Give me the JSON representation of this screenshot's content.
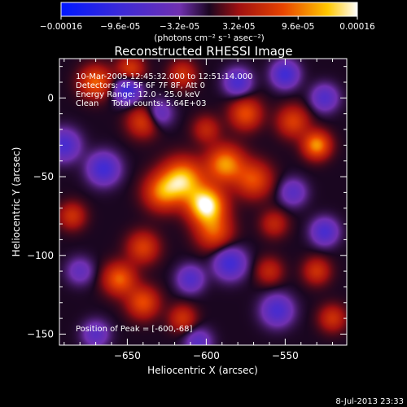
{
  "chart_data": {
    "type": "heatmap",
    "title": "Reconstructed RHESSI Image",
    "xlabel": "Heliocentric X (arcsec)",
    "ylabel": "Heliocentric Y (arcsec)",
    "xlim": [
      -693,
      -511
    ],
    "ylim": [
      -157,
      25
    ],
    "x_ticks": [
      -650,
      -600,
      -550
    ],
    "y_ticks": [
      -150,
      -100,
      -50,
      0
    ],
    "colorbar": {
      "tick_labels": [
        "-0.00016",
        "-9.6e-05",
        "-3.2e-05",
        "3.2e-05",
        "9.6e-05",
        "0.00016"
      ],
      "tick_values": [
        -0.00016,
        -9.6e-05,
        -3.2e-05,
        3.2e-05,
        9.6e-05,
        0.00016
      ],
      "range": [
        -0.00016,
        0.00016
      ],
      "unit_label": "(photons cm⁻² s⁻¹ asec⁻²)"
    },
    "annotations": [
      "10-Mar-2005 12:45:32.000 to 12:51:14.000",
      "Detectors: 4F 5F 6F 7F 8F, Att 0",
      "Energy Range: 12.0 - 25.0 keV",
      "Clean     Total counts: 5.64E+03"
    ],
    "peak_text": "Position of Peak = [-600,-68]",
    "peak": [
      -600,
      -68
    ],
    "sources": [
      {
        "x": -600,
        "y": -68,
        "amp": 0.00016,
        "sigma": 8
      },
      {
        "x": -615,
        "y": -52,
        "amp": 0.00013,
        "sigma": 9
      },
      {
        "x": -588,
        "y": -42,
        "amp": 0.00011,
        "sigma": 8
      },
      {
        "x": -628,
        "y": -60,
        "amp": 9e-05,
        "sigma": 8
      },
      {
        "x": -570,
        "y": -52,
        "amp": 8e-05,
        "sigma": 8
      },
      {
        "x": -595,
        "y": -85,
        "amp": 8e-05,
        "sigma": 8
      },
      {
        "x": -575,
        "y": -10,
        "amp": 8e-05,
        "sigma": 7
      },
      {
        "x": -545,
        "y": -15,
        "amp": 7e-05,
        "sigma": 7
      },
      {
        "x": -530,
        "y": -30,
        "amp": 0.00011,
        "sigma": 6
      },
      {
        "x": -640,
        "y": -15,
        "amp": 7e-05,
        "sigma": 7
      },
      {
        "x": -670,
        "y": 10,
        "amp": 9e-05,
        "sigma": 7
      },
      {
        "x": -648,
        "y": 18,
        "amp": 7e-05,
        "sigma": 6
      },
      {
        "x": -615,
        "y": 15,
        "amp": 6e-05,
        "sigma": 6
      },
      {
        "x": -640,
        "y": -95,
        "amp": 7e-05,
        "sigma": 7
      },
      {
        "x": -655,
        "y": -115,
        "amp": 9e-05,
        "sigma": 7
      },
      {
        "x": -640,
        "y": -130,
        "amp": 8e-05,
        "sigma": 7
      },
      {
        "x": -685,
        "y": -75,
        "amp": 6e-05,
        "sigma": 6
      },
      {
        "x": -615,
        "y": -140,
        "amp": 6e-05,
        "sigma": 6
      },
      {
        "x": -560,
        "y": -110,
        "amp": 5e-05,
        "sigma": 6
      },
      {
        "x": -530,
        "y": -110,
        "amp": 6e-05,
        "sigma": 6
      },
      {
        "x": -520,
        "y": -140,
        "amp": 6e-05,
        "sigma": 6
      },
      {
        "x": -600,
        "y": -20,
        "amp": 5e-05,
        "sigma": 6
      },
      {
        "x": -557,
        "y": -80,
        "amp": 5e-05,
        "sigma": 6
      },
      {
        "x": -650,
        "y": 5,
        "amp": -0.0001,
        "sigma": 6
      },
      {
        "x": -690,
        "y": -30,
        "amp": -8e-05,
        "sigma": 7
      },
      {
        "x": -665,
        "y": -45,
        "amp": -9e-05,
        "sigma": 7
      },
      {
        "x": -580,
        "y": 10,
        "amp": -8e-05,
        "sigma": 6
      },
      {
        "x": -550,
        "y": 15,
        "amp": -9e-05,
        "sigma": 6
      },
      {
        "x": -525,
        "y": 0,
        "amp": -7e-05,
        "sigma": 6
      },
      {
        "x": -630,
        "y": -10,
        "amp": -6e-05,
        "sigma": 6
      },
      {
        "x": -545,
        "y": -60,
        "amp": -6e-05,
        "sigma": 6
      },
      {
        "x": -585,
        "y": -105,
        "amp": -9e-05,
        "sigma": 7
      },
      {
        "x": -555,
        "y": -135,
        "amp": -8e-05,
        "sigma": 7
      },
      {
        "x": -610,
        "y": -115,
        "amp": -7e-05,
        "sigma": 6
      },
      {
        "x": -680,
        "y": -110,
        "amp": -5e-05,
        "sigma": 6
      },
      {
        "x": -525,
        "y": -85,
        "amp": -8e-05,
        "sigma": 6
      },
      {
        "x": -670,
        "y": -150,
        "amp": -6e-05,
        "sigma": 6
      },
      {
        "x": -605,
        "y": -155,
        "amp": -6e-05,
        "sigma": 6
      }
    ]
  },
  "footer": {
    "timestamp": "8-Jul-2013 23:33"
  }
}
